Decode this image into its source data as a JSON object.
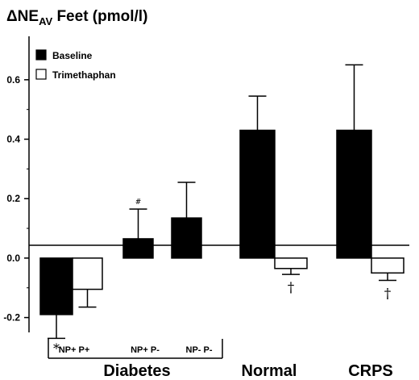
{
  "chart_data": {
    "type": "bar",
    "title": {
      "delta": "Δ",
      "main": "NE",
      "subscript": "AV",
      "rest": " Feet  (pmol/l)"
    },
    "ylim": [
      -0.25,
      0.7
    ],
    "yticks": [
      -0.2,
      0.0,
      0.2,
      0.4,
      0.6
    ],
    "ytick_labels": [
      "-0.2",
      "0.0",
      "0.2",
      "0.4",
      "0.6"
    ],
    "legend": {
      "position": "top-left",
      "entries": [
        {
          "label": "Baseline",
          "fill": "#000000"
        },
        {
          "label": "Trimethaphan",
          "fill": "#ffffff"
        }
      ]
    },
    "categories": [
      "NP+ P+",
      "NP+ P-",
      "NP- P-",
      "Normal",
      "CRPS"
    ],
    "series": [
      {
        "name": "Baseline",
        "fill": "#000000",
        "values": [
          -0.19,
          0.065,
          0.135,
          0.43,
          0.43
        ],
        "errors": [
          0.08,
          0.1,
          0.12,
          0.115,
          0.22
        ]
      },
      {
        "name": "Trimethaphan",
        "fill": "#ffffff",
        "values": [
          -0.105,
          null,
          null,
          -0.035,
          -0.05
        ],
        "errors": [
          0.06,
          null,
          null,
          0.02,
          0.025
        ]
      }
    ],
    "group_labels": [
      "Diabetes",
      "Normal",
      "CRPS"
    ],
    "annotations": [
      {
        "text": "*",
        "category": 0,
        "series": 0
      },
      {
        "text": "#",
        "category": 1,
        "series": 0
      },
      {
        "text": "†",
        "category": 3,
        "series": 1
      },
      {
        "text": "†",
        "category": 4,
        "series": 1
      }
    ]
  }
}
